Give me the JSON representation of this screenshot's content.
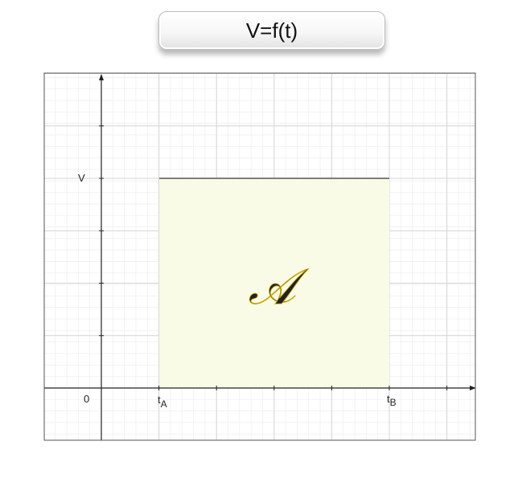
{
  "title": "V=f(t)",
  "labels": {
    "origin": "0",
    "v_level": "V",
    "t_a_base": "t",
    "t_a_sub": "A",
    "t_b_base": "t",
    "t_b_sub": "B",
    "area": "𝒜"
  },
  "colors": {
    "area_fill": "#f9fbe7",
    "area_letter": "#f3d90a",
    "area_letter_outline": "#c8a800",
    "line": "#333333",
    "axis": "#222222",
    "grid_major": "#d4d4d4",
    "grid_minor": "#eeeeee"
  }
}
